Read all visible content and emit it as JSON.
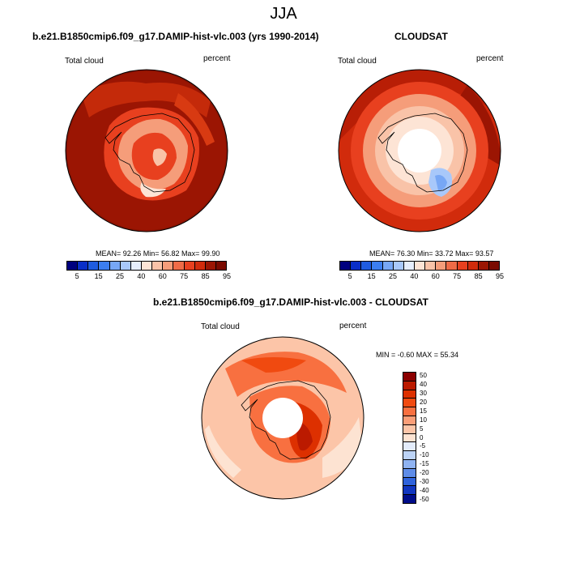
{
  "main_title": "JJA",
  "panel1": {
    "title": "b.e21.B1850cmip6.f09_g17.DAMIP-hist-vlc.003 (yrs 1990-2014)",
    "variable": "Total cloud",
    "units": "percent",
    "stats": "MEAN=  92.26  Min=  56.82  Max=  99.90"
  },
  "panel2": {
    "title": "CLOUDSAT",
    "variable": "Total cloud",
    "units": "percent",
    "stats": "MEAN=  76.30  Min=  33.72  Max=  93.57"
  },
  "panel3": {
    "title": "b.e21.B1850cmip6.f09_g17.DAMIP-hist-vlc.003 - CLOUDSAT",
    "variable": "Total cloud",
    "units": "percent",
    "stats": "MIN =  -0.60 MAX =  55.34"
  },
  "colorbar_abs": {
    "colors": [
      "#00007f",
      "#0a2fc8",
      "#1f5ce0",
      "#3c7ef0",
      "#77a7f5",
      "#a8c8fa",
      "#e6eefc",
      "#fde4d5",
      "#f9c3a8",
      "#f59d7a",
      "#ef6b47",
      "#e8401f",
      "#d12b0c",
      "#9b1503",
      "#7a0a00"
    ],
    "ticks": [
      "5",
      "15",
      "25",
      "40",
      "60",
      "75",
      "85",
      "95"
    ]
  },
  "colorbar_diff": {
    "colors": [
      "#8b0000",
      "#bb1a00",
      "#dd3000",
      "#f04a10",
      "#f87040",
      "#fa9e78",
      "#fcc5a8",
      "#fde3d2",
      "#e3ecfb",
      "#bcd3f6",
      "#8fb3f2",
      "#5e8ce8",
      "#2f63dc",
      "#1136c0",
      "#000d8a"
    ],
    "ticks": [
      "50",
      "40",
      "30",
      "20",
      "15",
      "10",
      "5",
      "0",
      "-5",
      "-10",
      "-15",
      "-20",
      "-30",
      "-40",
      "-50"
    ]
  }
}
